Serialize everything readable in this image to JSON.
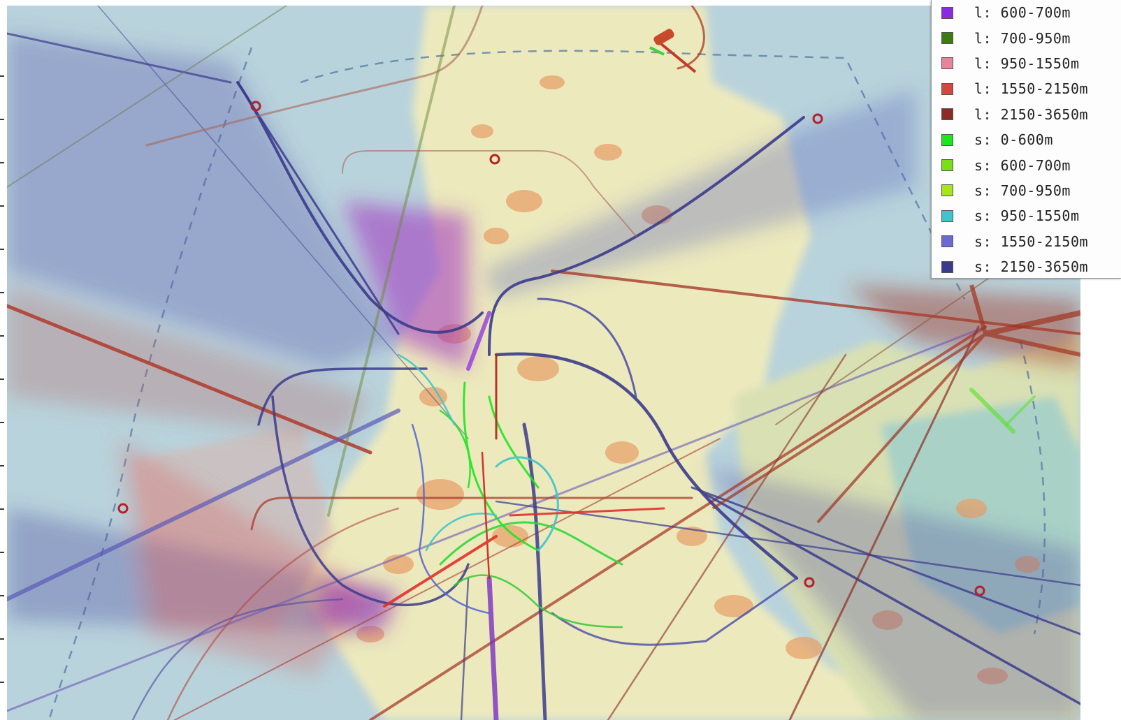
{
  "legend": {
    "items": [
      {
        "label": "l: 600-700m",
        "color": "#8a2be2"
      },
      {
        "label": "l: 700-950m",
        "color": "#3d7a12"
      },
      {
        "label": "l: 950-1550m",
        "color": "#e8839a"
      },
      {
        "label": "l: 1550-2150m",
        "color": "#cf4a3f"
      },
      {
        "label": "l: 2150-3650m",
        "color": "#8b2d24"
      },
      {
        "label": "s: 0-600m",
        "color": "#1ee61e"
      },
      {
        "label": "s: 600-700m",
        "color": "#7ddc1c"
      },
      {
        "label": "s: 700-950m",
        "color": "#a6e61a"
      },
      {
        "label": "s: 950-1550m",
        "color": "#3fc4cc"
      },
      {
        "label": "s: 1550-2150m",
        "color": "#6a6ad0"
      },
      {
        "label": "s: 2150-3650m",
        "color": "#3b3b8c"
      }
    ]
  },
  "map": {
    "water_color": "#b9d3dc",
    "land_color": "#e8e6b8",
    "urban_color": "#e7a16b"
  }
}
